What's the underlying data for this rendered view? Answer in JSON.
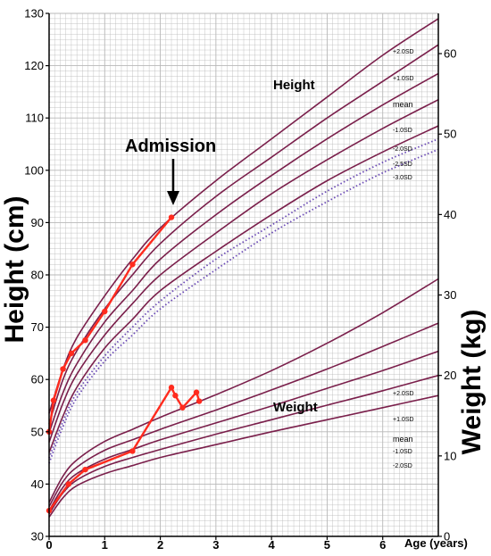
{
  "chart_data": {
    "type": "line",
    "y_left_label": "Height (cm)",
    "y_right_label": "Weight (kg)",
    "x_label": "Age (years)",
    "xlim": [
      0,
      7
    ],
    "ylim_left": [
      30,
      130
    ],
    "ylim_right": [
      0,
      65
    ],
    "x_ticks": [
      "0",
      "1",
      "2",
      "3",
      "4",
      "5",
      "6"
    ],
    "y_left_ticks": [
      "30",
      "40",
      "50",
      "60",
      "70",
      "80",
      "90",
      "100",
      "110",
      "120",
      "130"
    ],
    "y_right_ticks": [
      "0",
      "10",
      "20",
      "30",
      "40",
      "50",
      "60"
    ],
    "grid": true,
    "annotation": "Admission",
    "height_section_label": "Height",
    "weight_section_label": "Weight",
    "height_curves": [
      {
        "name": "+2.0SD",
        "style": "solid",
        "x": [
          0,
          0.25,
          0.5,
          1,
          1.5,
          2,
          3,
          4,
          5,
          6,
          7
        ],
        "y": [
          53.5,
          62,
          68,
          76,
          83,
          89,
          98,
          106,
          114,
          122,
          129
        ]
      },
      {
        "name": "+1.0SD",
        "style": "solid",
        "x": [
          0,
          0.25,
          0.5,
          1,
          1.5,
          2,
          3,
          4,
          5,
          6,
          7
        ],
        "y": [
          51.5,
          60,
          65.5,
          73.5,
          80,
          86,
          95,
          102.5,
          110,
          117,
          124
        ]
      },
      {
        "name": "mean",
        "style": "solid",
        "x": [
          0,
          0.25,
          0.5,
          1,
          1.5,
          2,
          3,
          4,
          5,
          6,
          7
        ],
        "y": [
          49.8,
          57.5,
          63,
          71,
          77,
          83,
          91.5,
          99,
          106,
          112.5,
          118.5
        ]
      },
      {
        "name": "-1.0SD",
        "style": "solid",
        "x": [
          0,
          0.25,
          0.5,
          1,
          1.5,
          2,
          3,
          4,
          5,
          6,
          7
        ],
        "y": [
          48,
          55.5,
          61,
          68.5,
          74.5,
          80,
          88,
          95.5,
          102,
          108,
          113.5
        ]
      },
      {
        "name": "-2.0SD",
        "style": "solid",
        "x": [
          0,
          0.25,
          0.5,
          1,
          1.5,
          2,
          3,
          4,
          5,
          6,
          7
        ],
        "y": [
          46,
          53,
          58.5,
          66,
          71.5,
          77,
          84.5,
          91.5,
          98,
          103.5,
          108.5
        ]
      },
      {
        "name": "-2.5SD",
        "style": "dotted",
        "x": [
          0,
          0.25,
          0.5,
          1,
          1.5,
          2,
          3,
          4,
          5,
          6,
          7
        ],
        "y": [
          45,
          52,
          57.5,
          64.5,
          70,
          75,
          83,
          89.5,
          96,
          101.5,
          106
        ]
      },
      {
        "name": "-3.0SD",
        "style": "dotted",
        "x": [
          0,
          0.25,
          0.5,
          1,
          1.5,
          2,
          3,
          4,
          5,
          6,
          7
        ],
        "y": [
          44,
          51,
          56.5,
          63.5,
          68.5,
          73.5,
          81,
          88,
          94,
          99.5,
          104
        ]
      }
    ],
    "weight_curves": [
      {
        "name": "+2.0SD",
        "x": [
          0,
          0.25,
          0.5,
          1,
          1.5,
          2,
          3,
          4,
          5,
          6,
          7
        ],
        "y": [
          4.2,
          7.5,
          9.5,
          11.8,
          13.3,
          14.8,
          17.6,
          20.6,
          24,
          27.8,
          32
        ]
      },
      {
        "name": "+1.0SD",
        "x": [
          0,
          0.25,
          0.5,
          1,
          1.5,
          2,
          3,
          4,
          5,
          6,
          7
        ],
        "y": [
          3.7,
          6.8,
          8.6,
          10.7,
          12,
          13.3,
          15.7,
          18.2,
          20.8,
          23.6,
          26.5
        ]
      },
      {
        "name": "mean",
        "x": [
          0,
          0.25,
          0.5,
          1,
          1.5,
          2,
          3,
          4,
          5,
          6,
          7
        ],
        "y": [
          3.2,
          6.1,
          7.8,
          9.6,
          10.8,
          12,
          14.1,
          16.2,
          18.4,
          20.6,
          23
        ]
      },
      {
        "name": "-1.0SD",
        "x": [
          0,
          0.25,
          0.5,
          1,
          1.5,
          2,
          3,
          4,
          5,
          6,
          7
        ],
        "y": [
          2.8,
          5.4,
          7,
          8.7,
          9.8,
          10.8,
          12.7,
          14.5,
          16.3,
          18.1,
          20
        ]
      },
      {
        "name": "-2.0SD",
        "x": [
          0,
          0.25,
          0.5,
          1,
          1.5,
          2,
          3,
          4,
          5,
          6,
          7
        ],
        "y": [
          2.4,
          4.8,
          6.3,
          7.8,
          8.8,
          9.8,
          11.4,
          13,
          14.5,
          16,
          17.5
        ]
      }
    ],
    "patient_height": {
      "x": [
        0,
        0.08,
        0.25,
        0.4,
        0.65,
        1,
        1.5,
        2.2
      ],
      "y": [
        50,
        56,
        62,
        65,
        67.5,
        73,
        82,
        91
      ]
    },
    "patient_weight": {
      "x": [
        0,
        0.35,
        0.65,
        1.5,
        2.2,
        2.27,
        2.4,
        2.65,
        2.7
      ],
      "y": [
        3.2,
        6.5,
        8.3,
        10.6,
        18.5,
        17.5,
        16,
        17.9,
        16.8
      ]
    },
    "colors": {
      "curve": "#7a1f4b",
      "dotted": "#6b4bb5",
      "patient": "#ff2b1e",
      "grid": "#b8b8b8",
      "axis": "#000000"
    }
  }
}
